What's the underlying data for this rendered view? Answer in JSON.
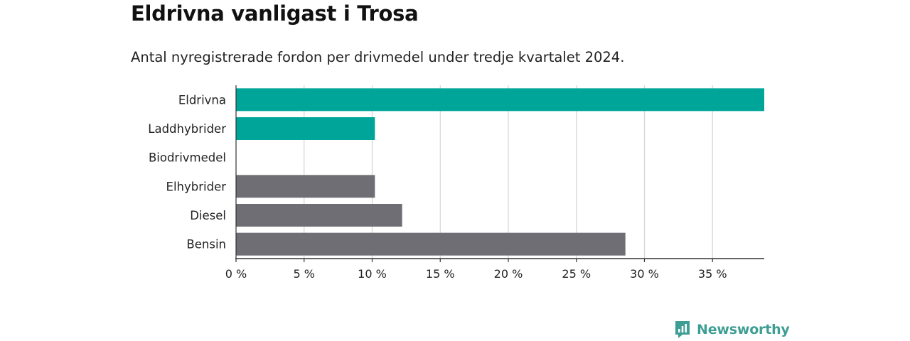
{
  "chart_data": {
    "type": "bar",
    "orientation": "horizontal",
    "title": "Eldrivna vanligast i Trosa",
    "subtitle": "Antal nyregistrerade fordon per drivmedel under tredje kvartalet 2024.",
    "categories": [
      "Eldrivna",
      "Laddhybrider",
      "Biodrivmedel",
      "Elhybrider",
      "Diesel",
      "Bensin"
    ],
    "values": [
      38.8,
      10.2,
      0,
      10.2,
      12.2,
      28.6
    ],
    "unit": "%",
    "xlim": [
      0,
      38.8
    ],
    "xticks": [
      0,
      5,
      10,
      15,
      20,
      25,
      30,
      35
    ],
    "xtick_labels": [
      "0 %",
      "5 %",
      "10 %",
      "15 %",
      "20 %",
      "25 %",
      "30 %",
      "35 %"
    ],
    "grid": "vertical",
    "colors": {
      "electric": "#00a59a",
      "other": "#6e6e74",
      "grid": "#d4d4d4",
      "axis": "#333333"
    },
    "bar_color_groups": [
      "electric",
      "electric",
      "electric",
      "other",
      "other",
      "other"
    ]
  },
  "brand": {
    "name": "Newsworthy",
    "icon": "newsworthy-logo-icon",
    "color": "#3f9e94"
  }
}
